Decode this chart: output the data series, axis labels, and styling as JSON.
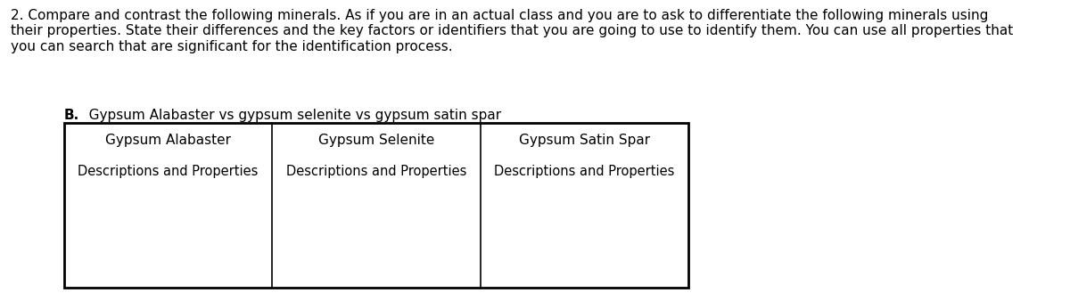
{
  "background_color": "#ffffff",
  "text_color": "#000000",
  "intro_line1": "2. Compare and contrast the following minerals. As if you are in an actual class and you are to ask to differentiate the following minerals using",
  "intro_line2": "their properties. State their differences and the key factors or identifiers that you are going to use to identify them. You can use all properties that",
  "intro_line3": "you can search that are significant for the identification process.",
  "subtitle_bold": "B.",
  "subtitle_rest": "   Gypsum Alabaster vs gypsum selenite vs gypsum satin spar",
  "col1_header": "Gypsum Alabaster",
  "col2_header": "Gypsum Selenite",
  "col3_header": "Gypsum Satin Spar",
  "col1_body": "Descriptions and Properties",
  "col2_body": "Descriptions and Properties",
  "col3_body": "Descriptions and Properties",
  "intro_fontsize": 11.0,
  "subtitle_fontsize": 11.0,
  "header_fontsize": 11.0,
  "body_fontsize": 10.5,
  "fig_width": 12.0,
  "fig_height": 3.29,
  "dpi": 100
}
